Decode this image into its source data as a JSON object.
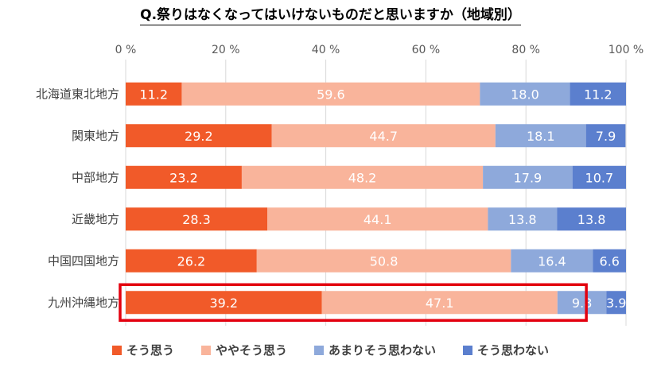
{
  "chart_data": {
    "type": "bar",
    "orientation": "horizontal",
    "stacked": true,
    "title": "Q.祭りはなくなってはいけないものだと思いますか（地域別）",
    "xlabel": "",
    "ylabel": "",
    "xlim": [
      0,
      100
    ],
    "tick_labels": [
      "0 %",
      "20 %",
      "40 %",
      "60 %",
      "80 %",
      "100 %"
    ],
    "tick_values": [
      0,
      20,
      40,
      60,
      80,
      100
    ],
    "grid": true,
    "legend_position": "bottom",
    "categories": [
      "北海道東北地方",
      "関東地方",
      "中部地方",
      "近畿地方",
      "中国四国地方",
      "九州沖縄地方"
    ],
    "series": [
      {
        "name": "そう思う",
        "color": "#f15a29",
        "values": [
          11.2,
          29.2,
          23.2,
          28.3,
          26.2,
          39.2
        ]
      },
      {
        "name": "ややそう思う",
        "color": "#f9b49b",
        "values": [
          59.6,
          44.7,
          48.2,
          44.1,
          50.8,
          47.1
        ]
      },
      {
        "name": "あまりそう思わない",
        "color": "#8ea9db",
        "values": [
          18.0,
          18.1,
          17.9,
          13.8,
          16.4,
          9.8
        ]
      },
      {
        "name": "そう思わない",
        "color": "#5b7fce",
        "values": [
          11.2,
          7.9,
          10.7,
          13.8,
          6.6,
          3.9
        ]
      }
    ],
    "highlight_category": "九州沖縄地方",
    "highlight_color": "#e3000f"
  }
}
